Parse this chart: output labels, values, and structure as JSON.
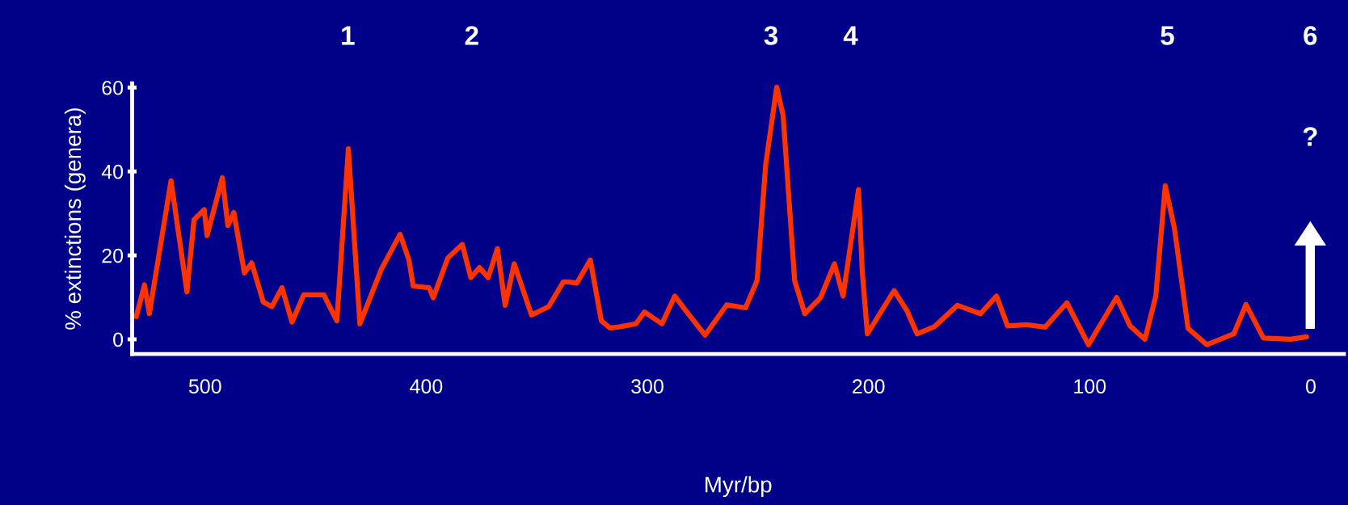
{
  "chart_data": {
    "type": "line",
    "xlabel": "Myr/bp",
    "ylabel": "% extinctions (genera)",
    "x": [
      531.1,
      527.4,
      525.2,
      515.4,
      508.2,
      505.0,
      500.4,
      499.1,
      492.2,
      489.7,
      487.0,
      482.2,
      478.9,
      473.7,
      469.8,
      465.2,
      460.7,
      455.4,
      446.3,
      440.4,
      435.2,
      430.0,
      420.2,
      411.8,
      407.8,
      405.9,
      398.7,
      396.8,
      390.2,
      383.7,
      379.8,
      375.9,
      372.0,
      367.8,
      364.3,
      360.2,
      352.4,
      344.6,
      338.0,
      335.8,
      331.9,
      325.8,
      320.8,
      316.9,
      312.3,
      305.2,
      301.3,
      293.4,
      287.6,
      283.0,
      273.9,
      264.1,
      255.6,
      250.4,
      246.5,
      241.5,
      238.6,
      233.4,
      228.8,
      221.7,
      215.4,
      211.5,
      204.5,
      202.8,
      200.5,
      188.4,
      182.6,
      178.0,
      170.2,
      159.8,
      149.4,
      142.1,
      137.1,
      128.6,
      120.1,
      110.3,
      100.5,
      87.8,
      81.7,
      75.0,
      70.1,
      65.8,
      61.6,
      55.5,
      47.0,
      34.8,
      29.3,
      21.4,
      9.2,
      1.9
    ],
    "series": [
      {
        "color": "#ff3300",
        "values": [
          5.4,
          13.0,
          6.1,
          37.8,
          11.3,
          28.5,
          30.9,
          24.7,
          38.5,
          27.1,
          30.2,
          15.8,
          18.2,
          8.9,
          7.8,
          12.3,
          4.1,
          10.6,
          10.6,
          4.4,
          45.4,
          3.7,
          16.8,
          25.0,
          18.9,
          12.7,
          12.3,
          9.9,
          19.4,
          22.6,
          14.7,
          17.1,
          14.7,
          21.6,
          8.1,
          18.0,
          5.8,
          7.8,
          13.7,
          13.7,
          13.4,
          18.9,
          4.4,
          2.7,
          3.0,
          3.7,
          6.5,
          3.7,
          10.3,
          7.1,
          1.0,
          8.2,
          7.5,
          14.0,
          41.6,
          60.1,
          53.3,
          14.0,
          6.1,
          9.9,
          18.0,
          10.3,
          35.7,
          16.0,
          1.3,
          11.6,
          6.8,
          1.3,
          3.0,
          8.1,
          6.1,
          10.3,
          3.2,
          3.5,
          2.9,
          8.7,
          -1.3,
          10.0,
          3.2,
          0.0,
          10.3,
          36.6,
          26.3,
          2.6,
          -1.3,
          1.3,
          8.3,
          0.3,
          0.0,
          0.6
        ]
      }
    ],
    "xlim": [
      533,
      -15
    ],
    "ylim": [
      -3.5,
      61
    ],
    "xticks": [
      500,
      400,
      300,
      200,
      100,
      0
    ],
    "yticks": [
      0,
      20,
      40,
      60
    ],
    "grid": false,
    "legend": false,
    "marker": "none",
    "line_style": "solid",
    "annotations": [
      "1",
      "2",
      "3",
      "4",
      "5",
      "6",
      "?"
    ]
  }
}
